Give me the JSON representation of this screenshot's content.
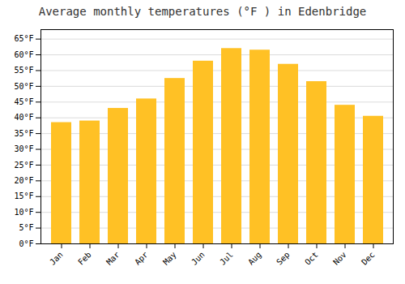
{
  "chart_data": {
    "type": "bar",
    "title": "Average monthly temperatures (°F ) in Edenbridge",
    "categories": [
      "Jan",
      "Feb",
      "Mar",
      "Apr",
      "May",
      "Jun",
      "Jul",
      "Aug",
      "Sep",
      "Oct",
      "Nov",
      "Dec"
    ],
    "values": [
      38.5,
      39.0,
      43.0,
      46.0,
      52.5,
      58.0,
      62.0,
      61.5,
      57.0,
      51.5,
      44.0,
      40.5
    ],
    "color": "#FFC125",
    "ylim": [
      0,
      68
    ],
    "yticks": [
      {
        "value": 0,
        "label": "0°F"
      },
      {
        "value": 5,
        "label": "5°F"
      },
      {
        "value": 10,
        "label": "10°F"
      },
      {
        "value": 15,
        "label": "15°F"
      },
      {
        "value": 20,
        "label": "20°F"
      },
      {
        "value": 25,
        "label": "25°F"
      },
      {
        "value": 30,
        "label": "30°F"
      },
      {
        "value": 35,
        "label": "35°F"
      },
      {
        "value": 40,
        "label": "40°F"
      },
      {
        "value": 45,
        "label": "45°F"
      },
      {
        "value": 50,
        "label": "50°F"
      },
      {
        "value": 55,
        "label": "55°F"
      },
      {
        "value": 60,
        "label": "60°F"
      },
      {
        "value": 65,
        "label": "65°F"
      }
    ],
    "grid": true
  }
}
